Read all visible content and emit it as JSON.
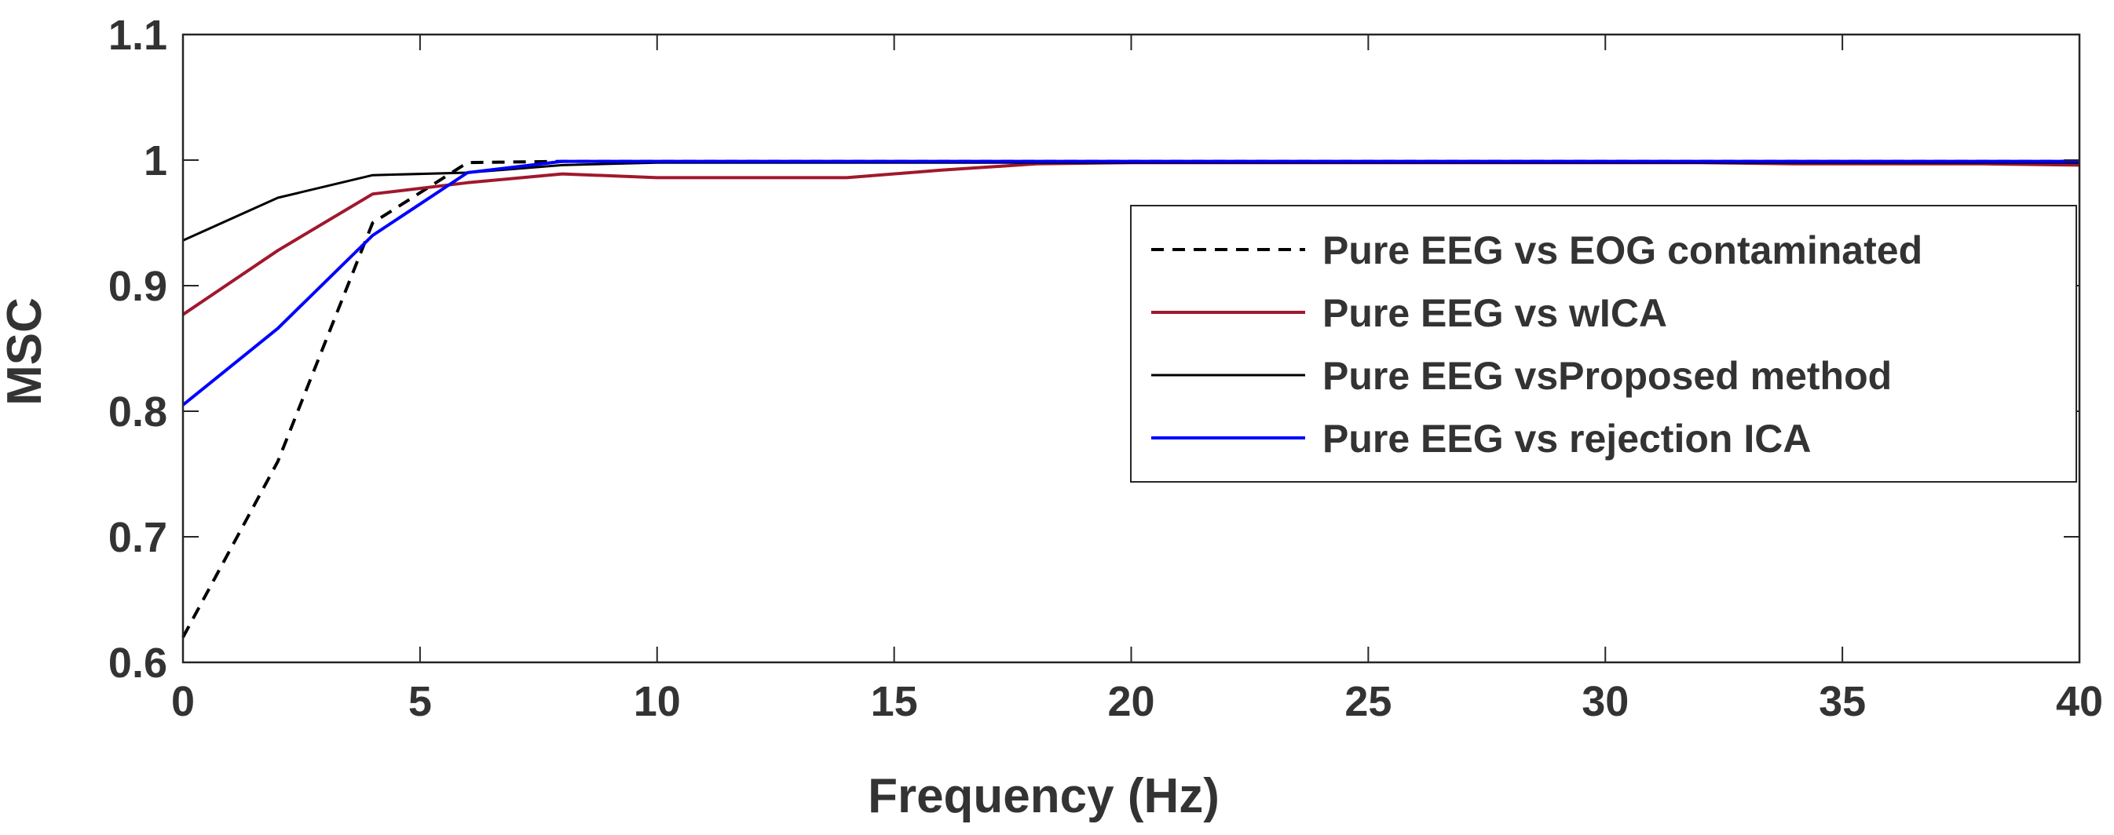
{
  "chart_data": {
    "type": "line",
    "title": "",
    "xlabel": "Frequency (Hz)",
    "ylabel": "MSC",
    "xlim": [
      0,
      40
    ],
    "ylim": [
      0.6,
      1.1
    ],
    "xticks": [
      0,
      5,
      10,
      15,
      20,
      25,
      30,
      35,
      40
    ],
    "xtick_labels": [
      "0",
      "5",
      "10",
      "15",
      "20",
      "25",
      "30",
      "35",
      "40"
    ],
    "yticks": [
      0.6,
      0.7,
      0.8,
      0.9,
      1.0,
      1.1
    ],
    "ytick_labels": [
      "0.6",
      "0.7",
      "0.8",
      "0.9",
      "1",
      "1.1"
    ],
    "grid": false,
    "legend_position": "center-right",
    "series": [
      {
        "key": "contaminated",
        "name": "Pure EEG vs EOG contaminated",
        "color": "#000000",
        "dash": "dashed",
        "x": [
          0,
          2,
          4,
          6,
          8,
          10,
          12,
          14,
          16,
          18,
          20,
          22,
          24,
          26,
          28,
          30,
          32,
          34,
          36,
          38,
          40
        ],
        "y": [
          0.62,
          0.76,
          0.95,
          0.998,
          0.999,
          0.999,
          0.999,
          0.999,
          0.999,
          0.999,
          0.999,
          0.999,
          0.999,
          0.999,
          0.999,
          0.999,
          0.999,
          0.999,
          0.999,
          0.999,
          0.999
        ]
      },
      {
        "key": "wica",
        "name": "Pure EEG vs wICA",
        "color": "#a0182d",
        "dash": "solid",
        "x": [
          0,
          2,
          4,
          6,
          8,
          10,
          12,
          14,
          16,
          18,
          20,
          22,
          24,
          26,
          28,
          30,
          32,
          34,
          36,
          38,
          40
        ],
        "y": [
          0.877,
          0.928,
          0.973,
          0.982,
          0.989,
          0.986,
          0.986,
          0.986,
          0.992,
          0.997,
          0.998,
          0.998,
          0.998,
          0.998,
          0.998,
          0.998,
          0.998,
          0.997,
          0.997,
          0.997,
          0.996
        ]
      },
      {
        "key": "proposed",
        "name": "Pure EEG vsProposed method",
        "color": "#000000",
        "dash": "solid",
        "x": [
          0,
          2,
          4,
          6,
          8,
          10,
          12,
          14,
          16,
          18,
          20,
          22,
          24,
          26,
          28,
          30,
          32,
          34,
          36,
          38,
          40
        ],
        "y": [
          0.936,
          0.97,
          0.988,
          0.99,
          0.996,
          0.998,
          0.998,
          0.998,
          0.998,
          0.998,
          0.998,
          0.998,
          0.998,
          0.998,
          0.998,
          0.998,
          0.998,
          0.998,
          0.998,
          0.998,
          0.998
        ]
      },
      {
        "key": "rejection",
        "name": "Pure EEG vs rejection ICA",
        "color": "#0000ff",
        "dash": "solid",
        "x": [
          0,
          2,
          4,
          6,
          8,
          10,
          12,
          14,
          16,
          18,
          20,
          22,
          24,
          26,
          28,
          30,
          32,
          34,
          36,
          38,
          40
        ],
        "y": [
          0.805,
          0.866,
          0.94,
          0.99,
          0.999,
          0.999,
          0.999,
          0.999,
          0.999,
          0.999,
          0.999,
          0.999,
          0.999,
          0.999,
          0.999,
          0.999,
          0.999,
          0.999,
          0.999,
          0.999,
          0.999
        ]
      }
    ]
  }
}
